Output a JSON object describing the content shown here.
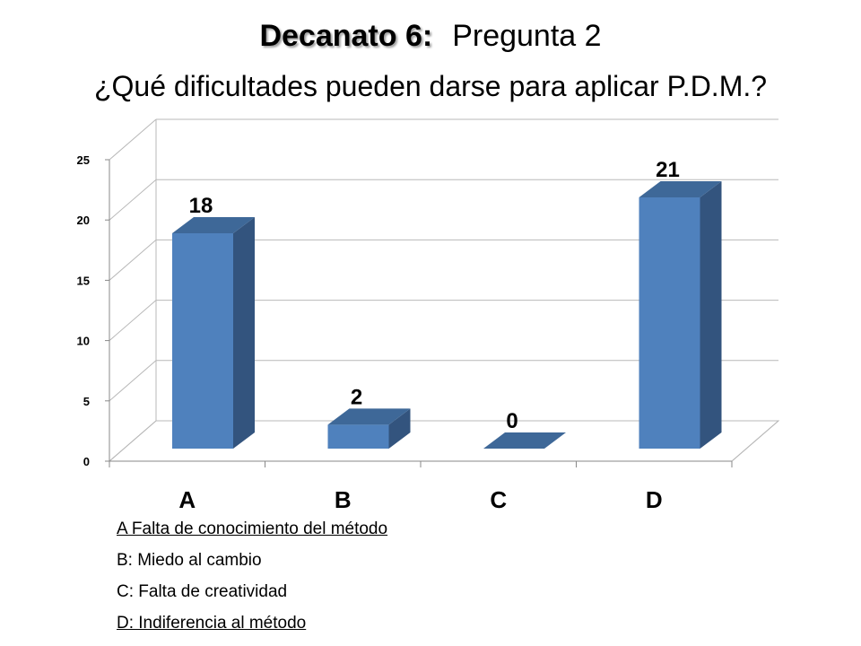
{
  "header": {
    "title_bold": "Decanato 6:",
    "title_rest": "Pregunta 2",
    "subtitle": "¿Qué dificultades pueden darse para aplicar P.D.M.?"
  },
  "chart_data": {
    "type": "bar",
    "categories": [
      "A",
      "B",
      "C",
      "D"
    ],
    "values": [
      18,
      2,
      0,
      21
    ],
    "data_labels": [
      "18",
      "2",
      "0",
      "21"
    ],
    "ylim": [
      0,
      25
    ],
    "yticks": [
      0,
      5,
      10,
      15,
      20,
      25
    ],
    "grid": true,
    "legend": "none",
    "bar_color": "#4F81BD",
    "bar_top_color": "#3E6898",
    "bar_side_color": "#33547E",
    "style": "3d-column"
  },
  "legend_items": [
    {
      "text": "A Falta de conocimiento del método",
      "underline": true
    },
    {
      "text": "B: Miedo al cambio",
      "underline": false
    },
    {
      "text": "C: Falta de creatividad",
      "underline": false
    },
    {
      "text": "D: Indiferencia al método",
      "underline": true
    }
  ]
}
